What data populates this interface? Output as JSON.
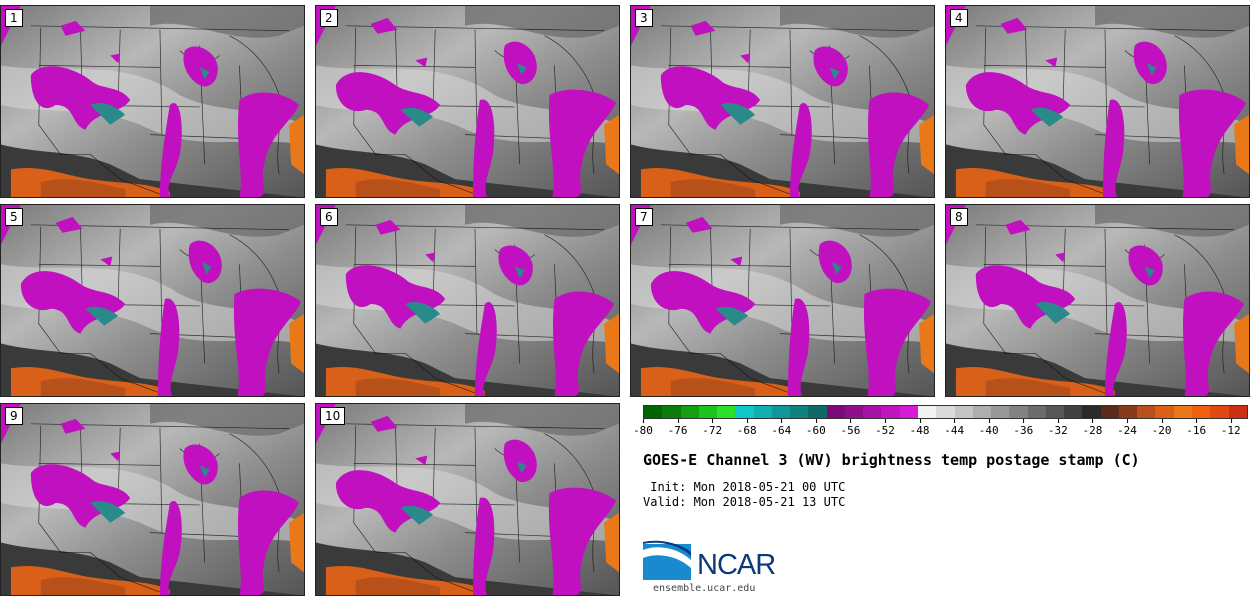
{
  "panels": [
    {
      "label": "1"
    },
    {
      "label": "2"
    },
    {
      "label": "3"
    },
    {
      "label": "4"
    },
    {
      "label": "5"
    },
    {
      "label": "6"
    },
    {
      "label": "7"
    },
    {
      "label": "8"
    },
    {
      "label": "9"
    },
    {
      "label": "10"
    }
  ],
  "colorbar": {
    "colors": [
      "#006400",
      "#087e08",
      "#12a012",
      "#1ec41e",
      "#2ae02a",
      "#10c8c8",
      "#10b0b0",
      "#109898",
      "#108080",
      "#106868",
      "#7a0a7a",
      "#8e0e8e",
      "#a612a6",
      "#be16be",
      "#d61ad6",
      "#f2f2f2",
      "#dadada",
      "#c4c4c4",
      "#aeaeae",
      "#989898",
      "#828282",
      "#6c6c6c",
      "#565656",
      "#404040",
      "#2a2a2a",
      "#5a2a1a",
      "#8a3a1a",
      "#b8501a",
      "#d86018",
      "#e87818",
      "#ee6010",
      "#e04a10",
      "#cc3010"
    ],
    "ticks": [
      "-80",
      "-76",
      "-72",
      "-68",
      "-64",
      "-60",
      "-56",
      "-52",
      "-48",
      "-44",
      "-40",
      "-36",
      "-32",
      "-28",
      "-24",
      "-20",
      "-16",
      "-12"
    ]
  },
  "title": "GOES-E Channel 3 (WV) brightness temp postage stamp (C)",
  "init_line": " Init: Mon 2018-05-21 00 UTC",
  "valid_line": "Valid: Mon 2018-05-21 13 UTC",
  "logo": {
    "text": "NCAR",
    "primary_color": "#0a3a78",
    "accent_color": "#1a8ad0"
  },
  "site": "ensemble.ucar.edu"
}
